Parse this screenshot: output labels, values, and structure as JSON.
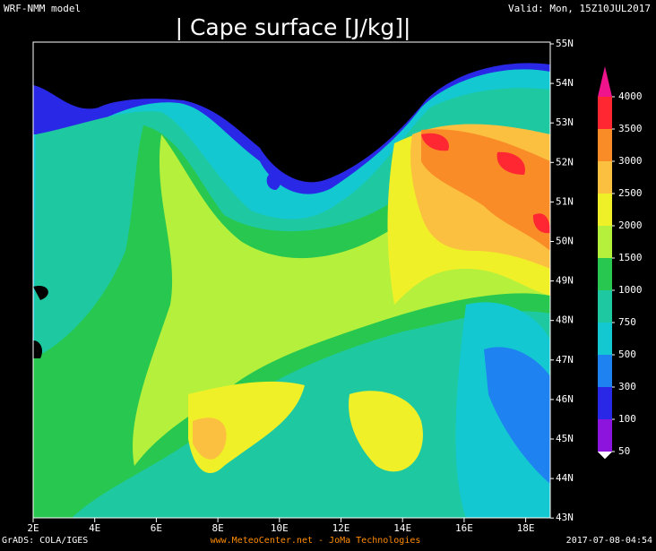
{
  "header": {
    "model": "WRF-NMM model",
    "valid": "Valid: Mon, 15Z10JUL2017",
    "title": "| Cape surface [J/kg]|"
  },
  "map": {
    "lon_labels": [
      "2E",
      "4E",
      "6E",
      "8E",
      "10E",
      "12E",
      "14E",
      "16E",
      "18E"
    ],
    "lat_labels": [
      "55N",
      "54N",
      "53N",
      "52N",
      "51N",
      "50N",
      "49N",
      "48N",
      "47N",
      "46N",
      "45N",
      "44N",
      "43N"
    ]
  },
  "colorbar": {
    "levels": [
      "50",
      "100",
      "300",
      "500",
      "750",
      "1000",
      "1500",
      "2000",
      "2500",
      "3000",
      "3500",
      "4000"
    ],
    "colors": [
      "#ffffff",
      "#8c14dc",
      "#2828e6",
      "#1e82f0",
      "#14c8d2",
      "#1ec8a0",
      "#28c850",
      "#b4f03c",
      "#f0f028",
      "#fcc040",
      "#fa8c28",
      "#ff2832",
      "#f0148c"
    ]
  },
  "footer": {
    "left": "GrADS: COLA/IGES",
    "center": "www.MeteoCenter.net  -  JoMa Technologies",
    "right": "2017-07-08-04:54"
  }
}
